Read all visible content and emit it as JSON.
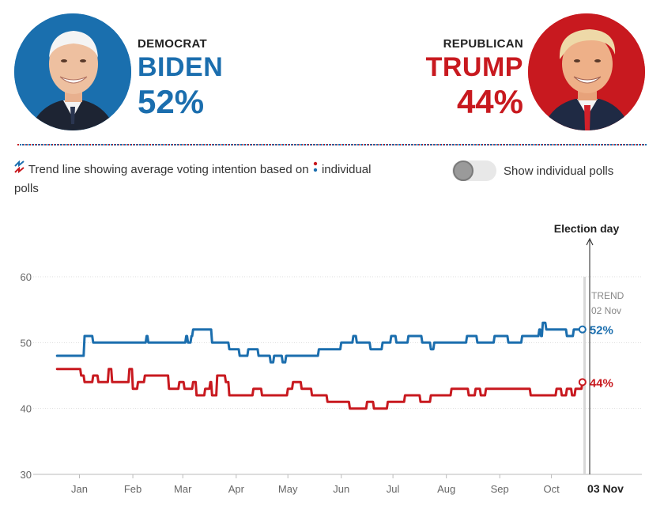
{
  "header": {
    "democrat": {
      "party": "DEMOCRAT",
      "name": "BIDEN",
      "pct": "52%",
      "color": "#1b6eae"
    },
    "republican": {
      "party": "REPUBLICAN",
      "name": "TRUMP",
      "pct": "44%",
      "color": "#c8191f"
    }
  },
  "legend": {
    "text_before": "Trend line showing average voting intention based on",
    "text_after": "individual",
    "text_wrap": "polls",
    "trend_icon": "trend-line-icon",
    "poll_icon": "poll-dots-icon"
  },
  "toggle": {
    "label": "Show individual polls",
    "state": "off"
  },
  "chart_data": {
    "type": "line",
    "ylim": [
      30,
      60
    ],
    "yticks": [
      "30",
      "40",
      "50",
      "60"
    ],
    "x_domain": [
      "2020-01-01",
      "2020-11-03"
    ],
    "xtick_labels": [
      "Jan",
      "Feb",
      "Mar",
      "Apr",
      "May",
      "Jun",
      "Jul",
      "Aug",
      "Sep",
      "Oct"
    ],
    "election_label": "Election day",
    "election_tick": "03 Nov",
    "trend_label": "TREND",
    "trend_date": "02 Nov",
    "series": [
      {
        "name": "BIDEN",
        "color": "#1b6eae",
        "end_label": "52%",
        "points": [
          [
            1,
            48
          ],
          [
            16,
            48
          ],
          [
            17,
            51
          ],
          [
            22,
            50
          ],
          [
            52,
            50
          ],
          [
            53,
            51
          ],
          [
            54,
            50
          ],
          [
            75,
            50
          ],
          [
            76,
            51
          ],
          [
            77,
            50
          ],
          [
            79,
            51
          ],
          [
            80,
            52
          ],
          [
            90,
            52
          ],
          [
            91,
            50
          ],
          [
            100,
            50
          ],
          [
            101,
            49
          ],
          [
            106,
            49
          ],
          [
            107,
            48
          ],
          [
            112,
            49
          ],
          [
            118,
            48
          ],
          [
            124,
            48
          ],
          [
            125,
            47
          ],
          [
            127,
            48
          ],
          [
            131,
            48
          ],
          [
            132,
            47
          ],
          [
            134,
            48
          ],
          [
            152,
            48
          ],
          [
            153,
            49
          ],
          [
            165,
            49
          ],
          [
            166,
            50
          ],
          [
            172,
            50
          ],
          [
            173,
            51
          ],
          [
            175,
            50
          ],
          [
            182,
            50
          ],
          [
            183,
            49
          ],
          [
            190,
            50
          ],
          [
            194,
            50
          ],
          [
            195,
            51
          ],
          [
            198,
            50
          ],
          [
            205,
            51
          ],
          [
            212,
            51
          ],
          [
            213,
            50
          ],
          [
            218,
            49
          ],
          [
            220,
            50
          ],
          [
            238,
            50
          ],
          [
            239,
            51
          ],
          [
            245,
            50
          ],
          [
            255,
            51
          ],
          [
            263,
            50
          ],
          [
            270,
            50
          ],
          [
            271,
            51
          ],
          [
            280,
            51
          ],
          [
            281,
            52
          ],
          [
            282,
            51
          ],
          [
            283,
            53
          ],
          [
            285,
            52
          ],
          [
            296,
            52
          ],
          [
            297,
            51
          ],
          [
            301,
            52
          ],
          [
            306,
            52
          ]
        ]
      },
      {
        "name": "TRUMP",
        "color": "#c8191f",
        "end_label": "44%",
        "points": [
          [
            1,
            46
          ],
          [
            14,
            46
          ],
          [
            15,
            45
          ],
          [
            17,
            44
          ],
          [
            22,
            45
          ],
          [
            25,
            44
          ],
          [
            30,
            44
          ],
          [
            31,
            46
          ],
          [
            33,
            44
          ],
          [
            42,
            44
          ],
          [
            43,
            46
          ],
          [
            45,
            43
          ],
          [
            48,
            44
          ],
          [
            52,
            45
          ],
          [
            65,
            45
          ],
          [
            66,
            43
          ],
          [
            72,
            44
          ],
          [
            75,
            43
          ],
          [
            80,
            44
          ],
          [
            82,
            42
          ],
          [
            87,
            43
          ],
          [
            90,
            44
          ],
          [
            91,
            42
          ],
          [
            94,
            45
          ],
          [
            99,
            44
          ],
          [
            101,
            42
          ],
          [
            112,
            42
          ],
          [
            115,
            43
          ],
          [
            120,
            42
          ],
          [
            134,
            42
          ],
          [
            135,
            43
          ],
          [
            138,
            44
          ],
          [
            143,
            43
          ],
          [
            148,
            43
          ],
          [
            149,
            42
          ],
          [
            157,
            42
          ],
          [
            158,
            41
          ],
          [
            170,
            41
          ],
          [
            171,
            40
          ],
          [
            180,
            40
          ],
          [
            181,
            41
          ],
          [
            185,
            40
          ],
          [
            192,
            40
          ],
          [
            193,
            41
          ],
          [
            202,
            41
          ],
          [
            203,
            42
          ],
          [
            210,
            42
          ],
          [
            212,
            41
          ],
          [
            218,
            42
          ],
          [
            228,
            42
          ],
          [
            230,
            43
          ],
          [
            240,
            42
          ],
          [
            244,
            43
          ],
          [
            247,
            42
          ],
          [
            250,
            43
          ],
          [
            265,
            43
          ],
          [
            275,
            43
          ],
          [
            276,
            42
          ],
          [
            290,
            42
          ],
          [
            291,
            43
          ],
          [
            294,
            42
          ],
          [
            297,
            43
          ],
          [
            300,
            42
          ],
          [
            302,
            43
          ],
          [
            306,
            44
          ]
        ]
      }
    ]
  }
}
